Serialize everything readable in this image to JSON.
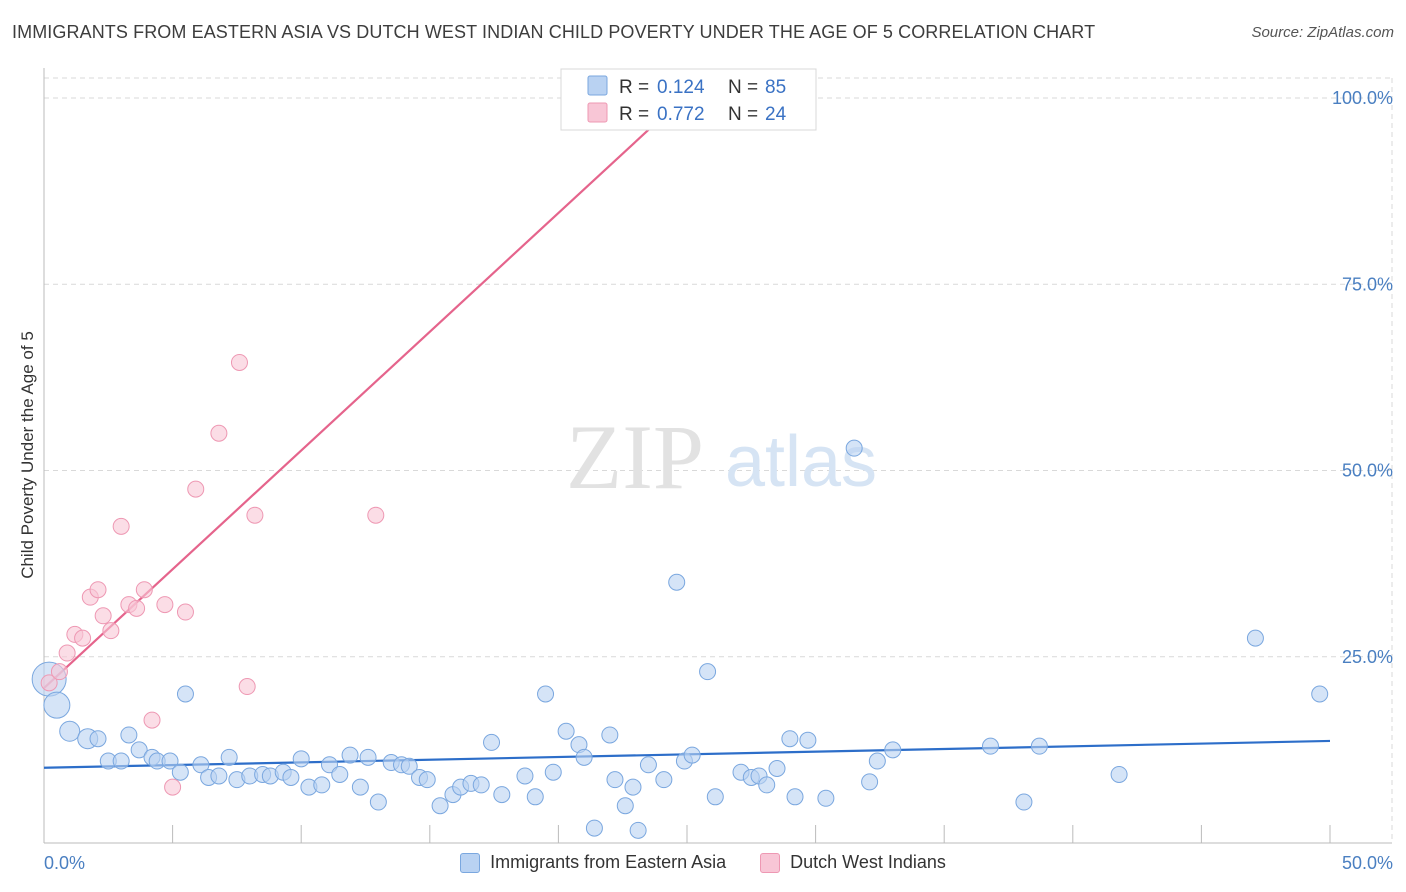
{
  "title": "IMMIGRANTS FROM EASTERN ASIA VS DUTCH WEST INDIAN CHILD POVERTY UNDER THE AGE OF 5 CORRELATION CHART",
  "source": "Source: ZipAtlas.com",
  "watermark": {
    "zip": "ZIP",
    "atlas": "atlas"
  },
  "colors": {
    "blue_fill": "#b9d2f2",
    "blue_stroke": "#7aa7df",
    "blue_line": "#2d6ec9",
    "pink_fill": "#f8c6d6",
    "pink_stroke": "#ee98b3",
    "pink_line": "#e5648c",
    "grid": "#d9d9d9",
    "tick_text": "#4a7fc1"
  },
  "stats": [
    {
      "r_label": "R =",
      "r": "0.124",
      "n_label": "N =",
      "n": "85"
    },
    {
      "r_label": "R =",
      "r": "0.772",
      "n_label": "N =",
      "n": "24"
    }
  ],
  "chart_data": {
    "type": "scatter",
    "title": "IMMIGRANTS FROM EASTERN ASIA VS DUTCH WEST INDIAN CHILD POVERTY UNDER THE AGE OF 5 CORRELATION CHART",
    "xlabel": "",
    "ylabel": "Child Poverty Under the Age of 5",
    "xlim": [
      0,
      50
    ],
    "ylim": [
      0,
      100
    ],
    "x_tick_labels": [
      {
        "value": 0,
        "label": "0.0%"
      },
      {
        "value": 50,
        "label": "50.0%"
      }
    ],
    "y_tick_labels": [
      {
        "value": 25,
        "label": "25.0%"
      },
      {
        "value": 50,
        "label": "50.0%"
      },
      {
        "value": 75,
        "label": "75.0%"
      },
      {
        "value": 100,
        "label": "100.0%"
      }
    ],
    "grid": true,
    "legend_position": "bottom-center",
    "series": [
      {
        "name": "Immigrants from Eastern Asia",
        "color": "#b9d2f2",
        "trend": {
          "x": [
            0,
            50
          ],
          "y": [
            10.1,
            13.7
          ]
        },
        "points": [
          {
            "x": 0.2,
            "y": 22.0,
            "s": 3
          },
          {
            "x": 0.5,
            "y": 18.5,
            "s": 2
          },
          {
            "x": 1.0,
            "y": 15.0,
            "s": 1
          },
          {
            "x": 1.7,
            "y": 14.0,
            "s": 1
          },
          {
            "x": 2.1,
            "y": 14.0
          },
          {
            "x": 2.5,
            "y": 11.0
          },
          {
            "x": 3.0,
            "y": 11.0
          },
          {
            "x": 3.3,
            "y": 14.5
          },
          {
            "x": 3.7,
            "y": 12.5
          },
          {
            "x": 4.2,
            "y": 11.5
          },
          {
            "x": 4.4,
            "y": 11.0
          },
          {
            "x": 4.9,
            "y": 11.0
          },
          {
            "x": 5.3,
            "y": 9.5
          },
          {
            "x": 5.5,
            "y": 20.0
          },
          {
            "x": 6.1,
            "y": 10.5
          },
          {
            "x": 6.4,
            "y": 8.8
          },
          {
            "x": 6.8,
            "y": 9.0
          },
          {
            "x": 7.2,
            "y": 11.5
          },
          {
            "x": 7.5,
            "y": 8.5
          },
          {
            "x": 8.0,
            "y": 9.0
          },
          {
            "x": 8.5,
            "y": 9.2
          },
          {
            "x": 8.8,
            "y": 9.0
          },
          {
            "x": 9.3,
            "y": 9.5
          },
          {
            "x": 9.6,
            "y": 8.8
          },
          {
            "x": 10.0,
            "y": 11.3
          },
          {
            "x": 10.3,
            "y": 7.5
          },
          {
            "x": 10.8,
            "y": 7.8
          },
          {
            "x": 11.1,
            "y": 10.5
          },
          {
            "x": 11.5,
            "y": 9.2
          },
          {
            "x": 11.9,
            "y": 11.8
          },
          {
            "x": 12.3,
            "y": 7.5
          },
          {
            "x": 12.6,
            "y": 11.5
          },
          {
            "x": 13.0,
            "y": 5.5
          },
          {
            "x": 13.5,
            "y": 10.8
          },
          {
            "x": 13.9,
            "y": 10.5
          },
          {
            "x": 14.2,
            "y": 10.3
          },
          {
            "x": 14.6,
            "y": 8.8
          },
          {
            "x": 14.9,
            "y": 8.5
          },
          {
            "x": 15.4,
            "y": 5.0
          },
          {
            "x": 15.9,
            "y": 6.5
          },
          {
            "x": 16.2,
            "y": 7.5
          },
          {
            "x": 16.6,
            "y": 8.0
          },
          {
            "x": 17.0,
            "y": 7.8
          },
          {
            "x": 17.4,
            "y": 13.5
          },
          {
            "x": 17.8,
            "y": 6.5
          },
          {
            "x": 18.7,
            "y": 9.0
          },
          {
            "x": 19.1,
            "y": 6.2
          },
          {
            "x": 19.5,
            "y": 20.0
          },
          {
            "x": 19.8,
            "y": 9.5
          },
          {
            "x": 20.3,
            "y": 15.0
          },
          {
            "x": 20.8,
            "y": 13.2
          },
          {
            "x": 21.0,
            "y": 11.5
          },
          {
            "x": 21.4,
            "y": 2.0
          },
          {
            "x": 22.0,
            "y": 14.5
          },
          {
            "x": 22.2,
            "y": 8.5
          },
          {
            "x": 22.6,
            "y": 5.0
          },
          {
            "x": 22.9,
            "y": 7.5
          },
          {
            "x": 23.1,
            "y": 1.7
          },
          {
            "x": 23.5,
            "y": 10.5
          },
          {
            "x": 24.1,
            "y": 8.5
          },
          {
            "x": 24.6,
            "y": 35.0
          },
          {
            "x": 24.9,
            "y": 11.0
          },
          {
            "x": 25.2,
            "y": 11.8
          },
          {
            "x": 25.8,
            "y": 23.0
          },
          {
            "x": 26.1,
            "y": 6.2
          },
          {
            "x": 27.1,
            "y": 9.5
          },
          {
            "x": 27.5,
            "y": 8.8
          },
          {
            "x": 27.8,
            "y": 9.0
          },
          {
            "x": 28.1,
            "y": 7.8
          },
          {
            "x": 28.5,
            "y": 10.0
          },
          {
            "x": 29.0,
            "y": 14.0
          },
          {
            "x": 29.2,
            "y": 6.2
          },
          {
            "x": 29.7,
            "y": 13.8
          },
          {
            "x": 30.4,
            "y": 6.0
          },
          {
            "x": 31.5,
            "y": 53.0
          },
          {
            "x": 32.1,
            "y": 8.2
          },
          {
            "x": 32.4,
            "y": 11.0
          },
          {
            "x": 33.0,
            "y": 12.5
          },
          {
            "x": 36.8,
            "y": 13.0
          },
          {
            "x": 38.1,
            "y": 5.5
          },
          {
            "x": 38.7,
            "y": 13.0
          },
          {
            "x": 41.8,
            "y": 9.2
          },
          {
            "x": 47.1,
            "y": 27.5
          },
          {
            "x": 49.6,
            "y": 20.0
          }
        ]
      },
      {
        "name": "Dutch West Indians",
        "color": "#f8c6d6",
        "trend": {
          "x": [
            0,
            23.9
          ],
          "y": [
            20.8,
            97.0
          ]
        },
        "points": [
          {
            "x": 0.2,
            "y": 21.5
          },
          {
            "x": 0.6,
            "y": 23.0
          },
          {
            "x": 0.9,
            "y": 25.5
          },
          {
            "x": 1.2,
            "y": 28.0
          },
          {
            "x": 1.5,
            "y": 27.5
          },
          {
            "x": 1.8,
            "y": 33.0
          },
          {
            "x": 2.1,
            "y": 34.0
          },
          {
            "x": 2.3,
            "y": 30.5
          },
          {
            "x": 2.6,
            "y": 28.5
          },
          {
            "x": 3.0,
            "y": 42.5
          },
          {
            "x": 3.3,
            "y": 32.0
          },
          {
            "x": 3.6,
            "y": 31.5
          },
          {
            "x": 3.9,
            "y": 34.0
          },
          {
            "x": 4.2,
            "y": 16.5
          },
          {
            "x": 4.7,
            "y": 32.0
          },
          {
            "x": 5.0,
            "y": 7.5
          },
          {
            "x": 5.5,
            "y": 31.0
          },
          {
            "x": 5.9,
            "y": 47.5
          },
          {
            "x": 6.8,
            "y": 55.0
          },
          {
            "x": 7.6,
            "y": 64.5
          },
          {
            "x": 7.9,
            "y": 21.0
          },
          {
            "x": 8.2,
            "y": 44.0
          },
          {
            "x": 12.9,
            "y": 44.0
          }
        ]
      }
    ]
  }
}
